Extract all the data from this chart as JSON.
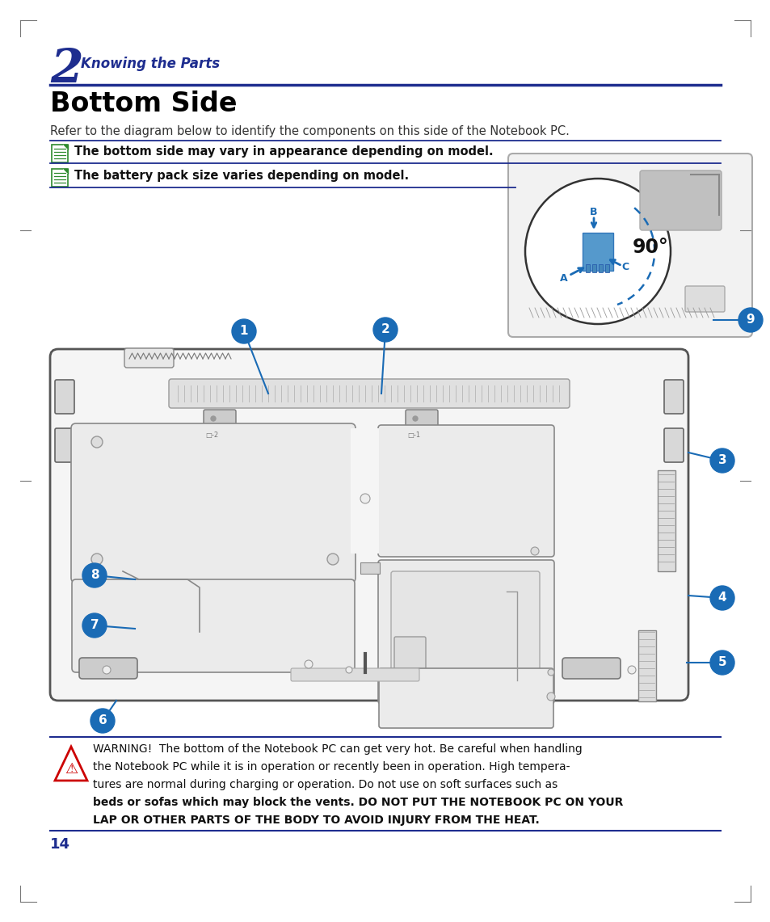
{
  "page_bg": "#ffffff",
  "dark_blue": "#1e2d8f",
  "blue_header_color": "#1e2d8f",
  "chapter_num": "2",
  "chapter_title": "Knowing the Parts",
  "section_title": "Bottom Side",
  "intro_text": "Refer to the diagram below to identify the components on this side of the Notebook PC.",
  "note1": "The bottom side may vary in appearance depending on model.",
  "note2": "The battery pack size varies depending on model.",
  "warning_text_1": "WARNING!  The bottom of the Notebook PC can get very hot. Be careful when handling",
  "warning_text_2": "the Notebook PC while it is in operation or recently been in operation. High tempera-",
  "warning_text_3": "tures are normal during charging or operation. Do not use on soft surfaces such as",
  "warning_text_4": "beds or sofas which may block the vents. DO NOT PUT THE NOTEBOOK PC ON YOUR",
  "warning_text_5": "LAP OR OTHER PARTS OF THE BODY TO AVOID INJURY FROM THE HEAT.",
  "page_number": "14",
  "line_color": "#1e2d8f",
  "callout_color": "#1a6bb5",
  "circle_bg": "#1a6bb5",
  "circle_text_color": "#ffffff",
  "green_icon": "#2e8b2e",
  "diagram_bg": "#f0f0f0",
  "panel_color": "#e8e8e8",
  "screw_color": "#cccccc"
}
